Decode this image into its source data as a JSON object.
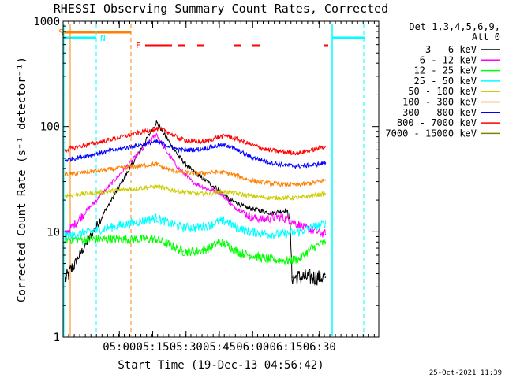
{
  "chart_data": {
    "type": "line",
    "title": "RHESSI Observing Summary Count Rates, Corrected",
    "xlabel": "Start Time (19-Dec-13 04:56:42)",
    "ylabel": "Corrected Count Rate (s⁻¹ detector⁻¹)",
    "yscale": "log",
    "ylim": [
      1,
      1000
    ],
    "xlim_minutes": [
      -22,
      120
    ],
    "x_ticks": [
      {
        "label": "05:00",
        "min": 3.3
      },
      {
        "label": "05:15",
        "min": 18.3
      },
      {
        "label": "05:30",
        "min": 33.3
      },
      {
        "label": "05:45",
        "min": 48.3
      },
      {
        "label": "06:00",
        "min": 63.3
      },
      {
        "label": "06:15",
        "min": 78.3
      },
      {
        "label": "06:30",
        "min": 93.3
      }
    ],
    "y_ticks": [
      {
        "label": "1",
        "value": 1
      },
      {
        "label": "10",
        "value": 10
      },
      {
        "label": "100",
        "value": 100
      },
      {
        "label": "1000",
        "value": 1000
      }
    ],
    "legend": {
      "header": [
        "Det 1,3,4,5,6,9,",
        "Att 0"
      ],
      "position": "top-right"
    },
    "series": [
      {
        "name": "3 - 6 keV",
        "color": "#000000",
        "x": [
          -21,
          20,
          22,
          26,
          30,
          35,
          40,
          48,
          53,
          56,
          60,
          66,
          72,
          78,
          80,
          81,
          87,
          96
        ],
        "y": [
          3.5,
          110,
          95,
          70,
          52,
          40,
          33,
          25,
          20,
          19,
          17,
          16,
          15,
          16,
          14,
          3.7,
          3.7,
          3.7
        ]
      },
      {
        "name": "6 - 12 keV",
        "color": "#ff00ff",
        "x": [
          -21,
          20,
          24,
          30,
          36,
          42,
          48,
          52,
          55,
          58,
          62,
          68,
          74,
          80,
          86,
          96
        ],
        "y": [
          9.5,
          85,
          60,
          40,
          30,
          26,
          24,
          20,
          17,
          16,
          14,
          13,
          14,
          13,
          11,
          9.5
        ]
      },
      {
        "name": "12 - 25 keV",
        "color": "#00ff00",
        "x": [
          -21,
          20,
          26,
          32,
          38,
          44,
          48,
          52,
          56,
          62,
          70,
          78,
          84,
          90,
          96
        ],
        "y": [
          8.5,
          8.5,
          7.5,
          6.5,
          6.5,
          7,
          8,
          7.5,
          6.5,
          6,
          5.5,
          5.3,
          5.5,
          7,
          8
        ]
      },
      {
        "name": "25 - 50 keV",
        "color": "#00ffff",
        "x": [
          -21,
          20,
          26,
          32,
          38,
          44,
          48,
          52,
          56,
          62,
          70,
          78,
          84,
          90,
          96
        ],
        "y": [
          9,
          13.5,
          12,
          11,
          11,
          11.5,
          12.5,
          12.5,
          11,
          10,
          9.5,
          9.5,
          10,
          11,
          12
        ]
      },
      {
        "name": "50 - 100 keV",
        "color": "#cccc00",
        "x": [
          -21,
          20,
          26,
          32,
          38,
          44,
          48,
          52,
          56,
          62,
          70,
          78,
          84,
          90,
          96
        ],
        "y": [
          22,
          27,
          25,
          24,
          23,
          23,
          24,
          24,
          23,
          22,
          21,
          21,
          21,
          22,
          23
        ]
      },
      {
        "name": "100 - 300 keV",
        "color": "#ff8000",
        "x": [
          -21,
          20,
          24,
          30,
          36,
          42,
          48,
          52,
          56,
          62,
          70,
          78,
          84,
          90,
          96
        ],
        "y": [
          35,
          44,
          40,
          37,
          36,
          36,
          37,
          36,
          34,
          31,
          29,
          28,
          28,
          29,
          31
        ]
      },
      {
        "name": "300 - 800 keV",
        "color": "#0000ff",
        "x": [
          -21,
          20,
          24,
          30,
          36,
          42,
          48,
          52,
          56,
          62,
          70,
          78,
          84,
          90,
          96
        ],
        "y": [
          48,
          72,
          67,
          60,
          60,
          62,
          66,
          66,
          60,
          52,
          46,
          43,
          42,
          43,
          45
        ]
      },
      {
        "name": "800 - 7000 keV",
        "color": "#ff0000",
        "x": [
          -21,
          20,
          24,
          30,
          36,
          42,
          48,
          52,
          56,
          62,
          70,
          78,
          84,
          90,
          96
        ],
        "y": [
          60,
          95,
          92,
          77,
          72,
          72,
          80,
          82,
          76,
          68,
          60,
          57,
          56,
          60,
          65
        ]
      },
      {
        "name": "7000 - 15000 keV",
        "color": "#808000",
        "x": [],
        "y": []
      }
    ],
    "annotations": [
      {
        "text": "S",
        "color": "#ff8000"
      },
      {
        "text": "N",
        "color": "#00ffff"
      },
      {
        "text": "F",
        "color": "#ff0000"
      }
    ],
    "timestamp": "25-Oct-2021 11:39"
  }
}
